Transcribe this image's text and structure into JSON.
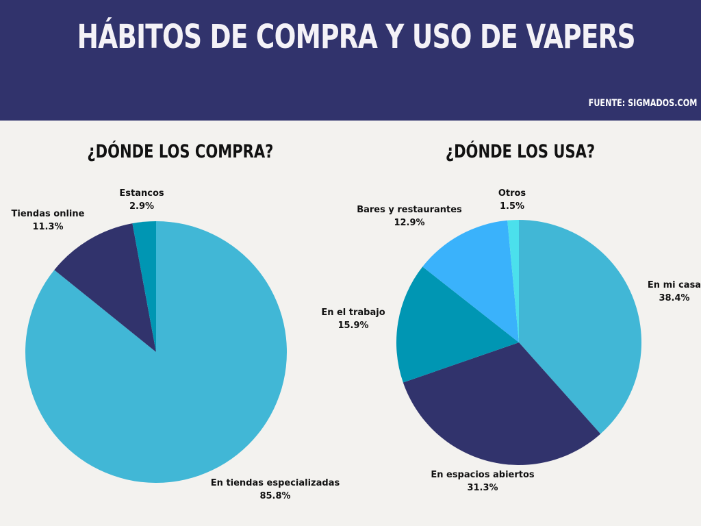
{
  "header": {
    "title": "HÁBITOS DE COMPRA Y USO DE VAPERS",
    "source": "FUENTE: SIGMADOS.COM"
  },
  "chart_data": [
    {
      "type": "pie",
      "title": "¿DÓNDE LOS COMPRA?",
      "slices": [
        {
          "label": "En tiendas especializadas",
          "value": 85.8,
          "value_text": "85.8%",
          "color": "#41b7d6"
        },
        {
          "label": "Tiendas online",
          "value": 11.3,
          "value_text": "11.3%",
          "color": "#31336c"
        },
        {
          "label": "Estancos",
          "value": 2.9,
          "value_text": "2.9%",
          "color": "#0096b3"
        }
      ]
    },
    {
      "type": "pie",
      "title": "¿DÓNDE LOS USA?",
      "slices": [
        {
          "label": "En mi casa",
          "value": 38.4,
          "value_text": "38.4%",
          "color": "#41b7d6"
        },
        {
          "label": "En espacios abiertos",
          "value": 31.3,
          "value_text": "31.3%",
          "color": "#31336c"
        },
        {
          "label": "En el trabajo",
          "value": 15.9,
          "value_text": "15.9%",
          "color": "#0096b3"
        },
        {
          "label": "Bares y restaurantes",
          "value": 12.9,
          "value_text": "12.9%",
          "color": "#3ab2fb"
        },
        {
          "label": "Otros",
          "value": 1.5,
          "value_text": "1.5%",
          "color": "#4be0ec"
        }
      ]
    }
  ]
}
